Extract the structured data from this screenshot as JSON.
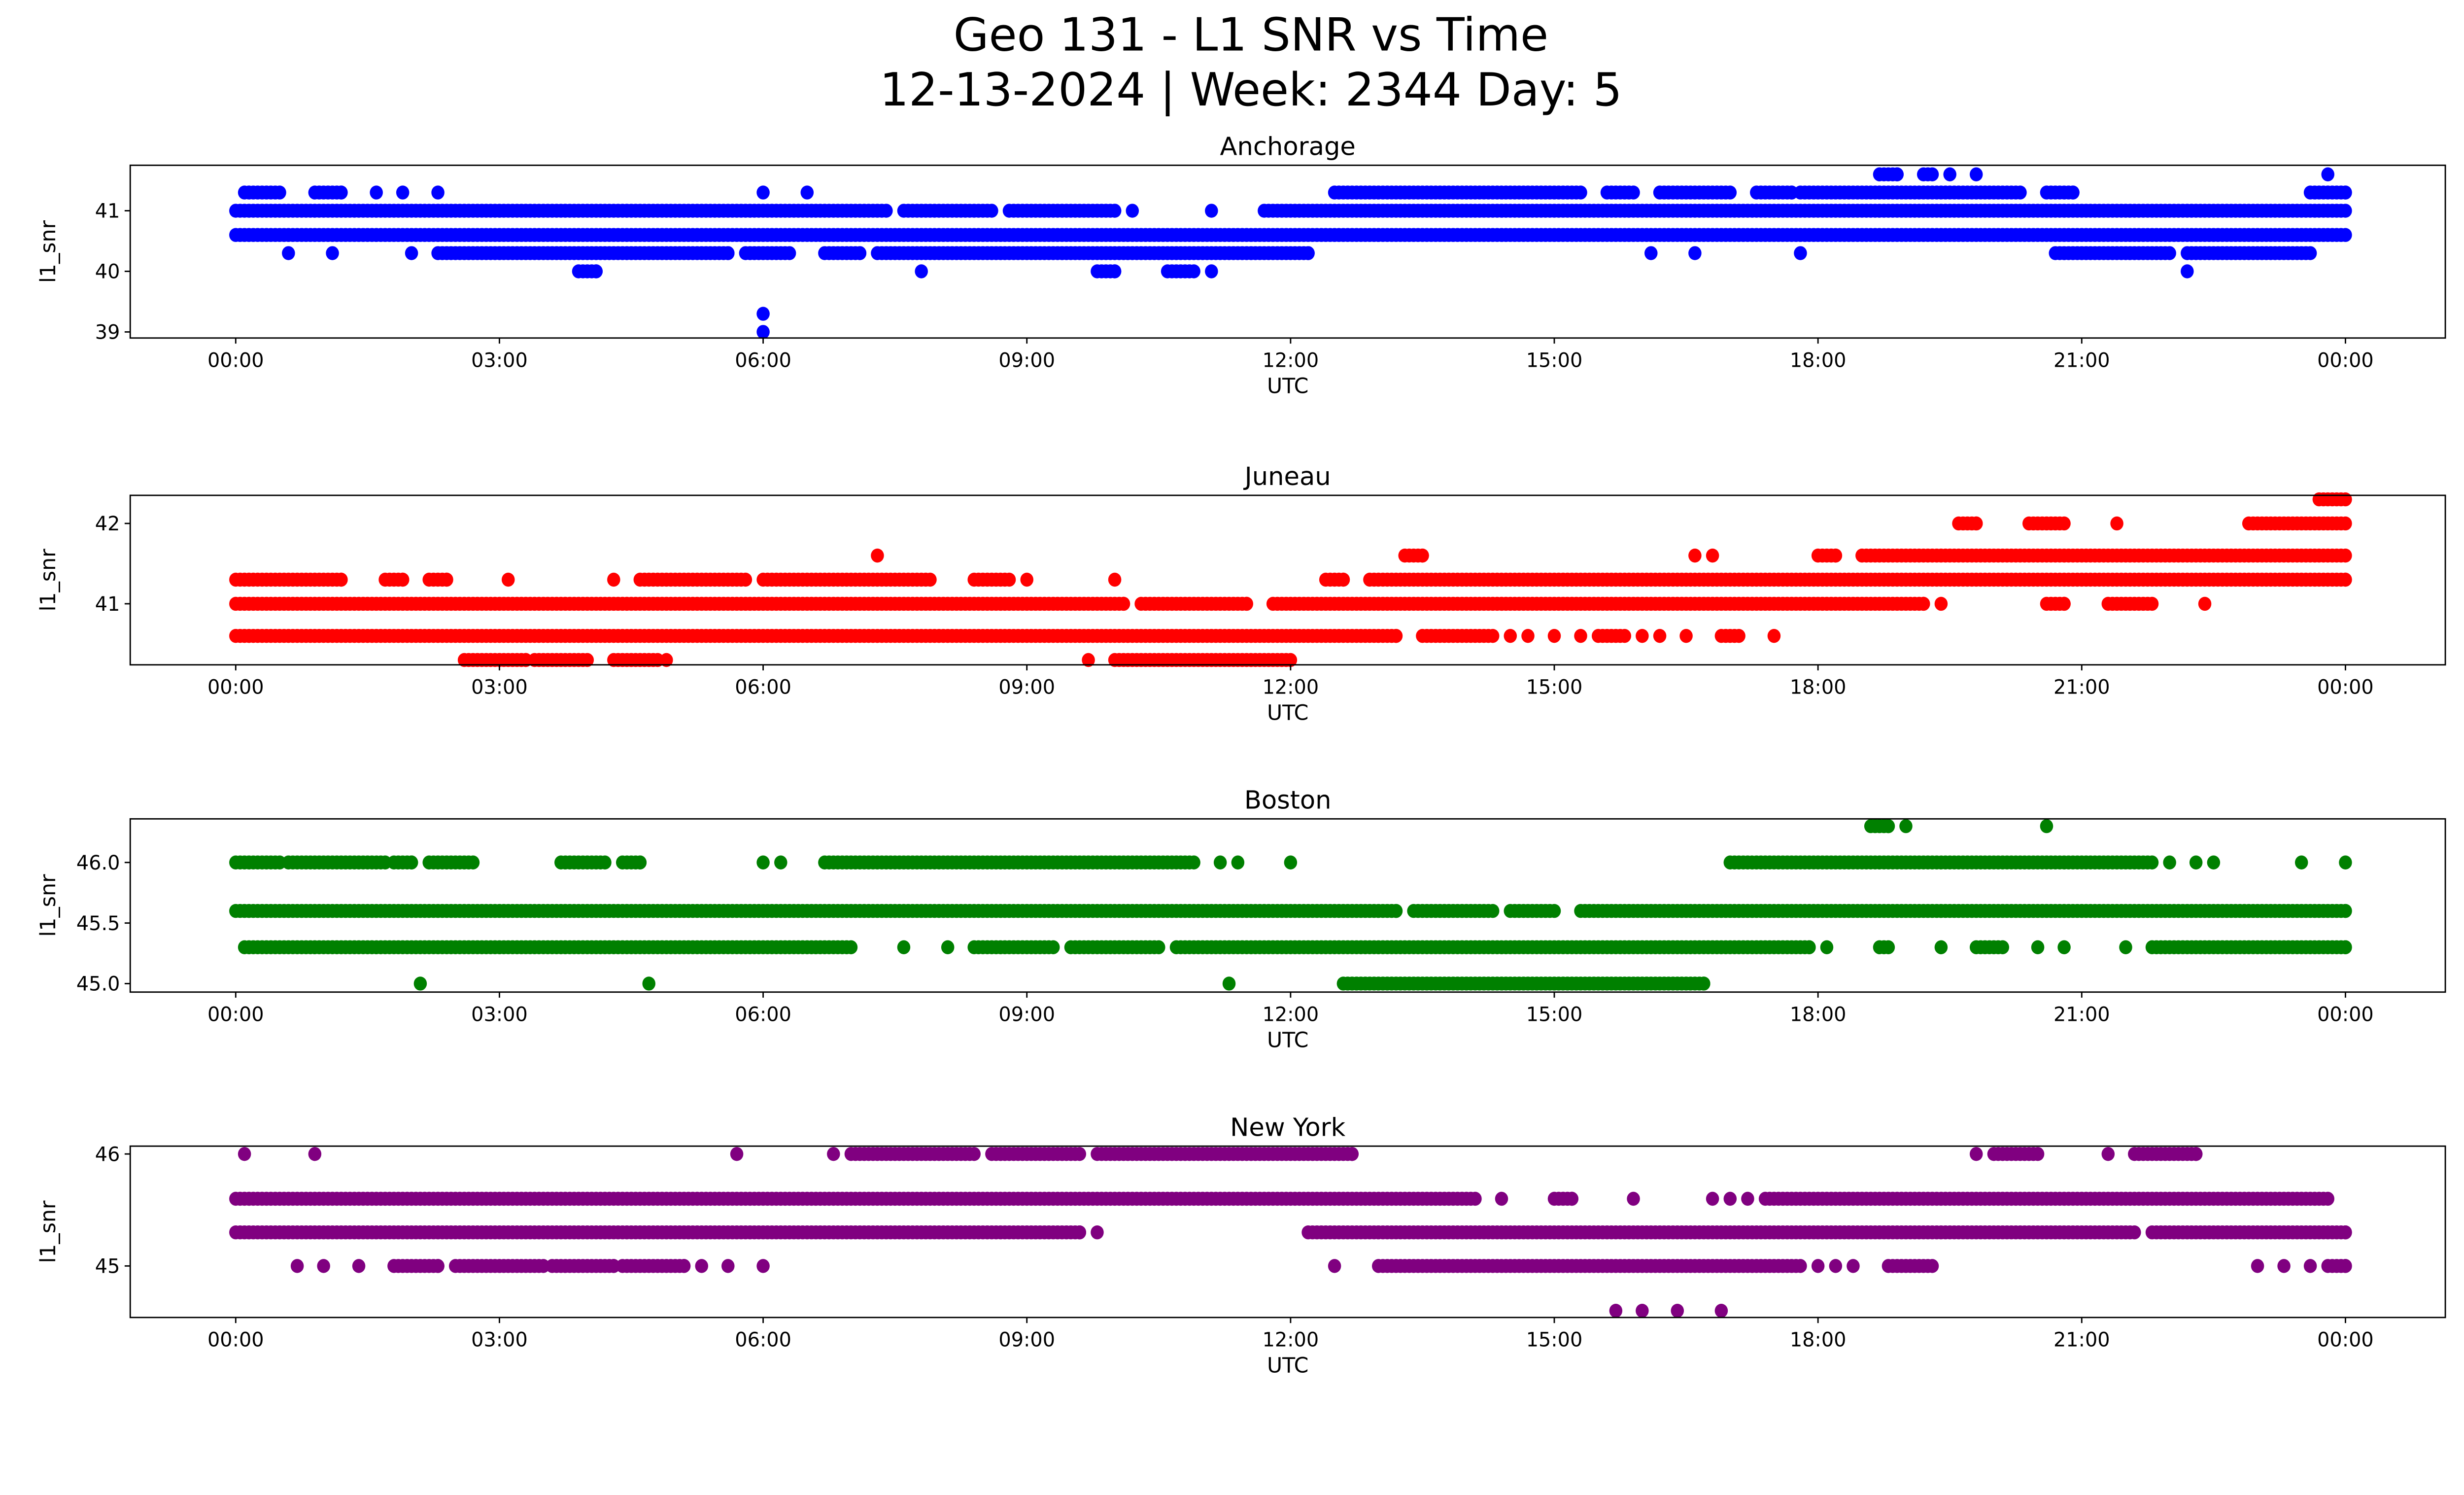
{
  "chart_data": {
    "type": "scatter",
    "title": "Geo 131 - L1 SNR vs Time",
    "subtitle": "12-13-2024 | Week: 2344 Day: 5",
    "x_ticks": [
      "00:00",
      "03:00",
      "06:00",
      "09:00",
      "12:00",
      "15:00",
      "18:00",
      "21:00",
      "00:00"
    ],
    "x_range_hours": [
      -1.55,
      25.1
    ],
    "xlabel": "UTC",
    "ylabel": "l1_snr",
    "grid": false,
    "panels": [
      {
        "title": "Anchorage",
        "color": "#0000ff",
        "ylim": [
          38.9,
          41.75
        ],
        "yticks": [
          "39",
          "40",
          "41"
        ],
        "ytick_values": [
          39,
          40,
          41
        ],
        "rows": [
          {
            "y": 41.6,
            "ranges": [
              [
                18.7,
                18.9
              ],
              [
                19.2,
                19.3
              ],
              [
                19.5,
                19.5
              ],
              [
                19.8,
                19.8
              ],
              [
                23.8,
                23.8
              ]
            ]
          },
          {
            "y": 41.3,
            "ranges": [
              [
                0.1,
                0.5
              ],
              [
                0.9,
                1.2
              ],
              [
                1.6,
                1.6
              ],
              [
                1.9,
                1.9
              ],
              [
                2.3,
                2.3
              ],
              [
                6.0,
                6.0
              ],
              [
                6.5,
                6.5
              ],
              [
                12.5,
                15.3
              ],
              [
                15.6,
                15.9
              ],
              [
                16.2,
                17.0
              ],
              [
                17.3,
                17.7
              ],
              [
                17.8,
                20.3
              ],
              [
                20.6,
                20.9
              ],
              [
                23.6,
                24.0
              ]
            ]
          },
          {
            "y": 41.0,
            "ranges": [
              [
                0,
                7.4
              ],
              [
                7.6,
                8.6
              ],
              [
                8.8,
                10.0
              ],
              [
                10.2,
                10.2
              ],
              [
                11.1,
                11.1
              ],
              [
                11.7,
                24.0
              ]
            ]
          },
          {
            "y": 40.6,
            "ranges": [
              [
                0,
                24.0
              ]
            ]
          },
          {
            "y": 40.3,
            "ranges": [
              [
                0.6,
                0.6
              ],
              [
                1.1,
                1.1
              ],
              [
                2.0,
                2.0
              ],
              [
                2.3,
                5.6
              ],
              [
                5.8,
                6.3
              ],
              [
                6.7,
                7.1
              ],
              [
                7.3,
                12.2
              ],
              [
                16.1,
                16.1
              ],
              [
                16.6,
                16.6
              ],
              [
                17.8,
                17.8
              ],
              [
                20.7,
                22.0
              ],
              [
                22.2,
                23.6
              ]
            ]
          },
          {
            "y": 40.0,
            "ranges": [
              [
                3.9,
                4.1
              ],
              [
                7.8,
                7.8
              ],
              [
                9.8,
                10.0
              ],
              [
                10.6,
                10.9
              ],
              [
                11.1,
                11.1
              ],
              [
                22.2,
                22.2
              ]
            ]
          },
          {
            "y": 39.3,
            "ranges": [
              [
                6.0,
                6.0
              ]
            ]
          },
          {
            "y": 39.0,
            "ranges": [
              [
                6.0,
                6.0
              ]
            ]
          }
        ]
      },
      {
        "title": "Juneau",
        "color": "#ff0000",
        "ylim": [
          40.24,
          42.35
        ],
        "yticks": [
          "41",
          "42"
        ],
        "ytick_values": [
          41,
          42
        ],
        "rows": [
          {
            "y": 42.3,
            "ranges": [
              [
                23.7,
                24.0
              ]
            ]
          },
          {
            "y": 42.0,
            "ranges": [
              [
                19.6,
                19.8
              ],
              [
                20.4,
                20.8
              ],
              [
                21.4,
                21.4
              ],
              [
                22.9,
                24.0
              ]
            ]
          },
          {
            "y": 41.6,
            "ranges": [
              [
                7.3,
                7.3
              ],
              [
                13.3,
                13.5
              ],
              [
                16.6,
                16.6
              ],
              [
                16.8,
                16.8
              ],
              [
                18.0,
                18.2
              ],
              [
                18.5,
                24.0
              ]
            ]
          },
          {
            "y": 41.3,
            "ranges": [
              [
                0,
                1.2
              ],
              [
                1.7,
                1.9
              ],
              [
                2.2,
                2.4
              ],
              [
                3.1,
                3.1
              ],
              [
                4.3,
                4.3
              ],
              [
                4.6,
                5.8
              ],
              [
                6.0,
                7.9
              ],
              [
                8.4,
                8.8
              ],
              [
                9.0,
                9.0
              ],
              [
                10.0,
                10.0
              ],
              [
                12.4,
                12.6
              ],
              [
                12.9,
                24.0
              ]
            ]
          },
          {
            "y": 41.0,
            "ranges": [
              [
                0,
                10.1
              ],
              [
                10.3,
                11.5
              ],
              [
                11.8,
                19.2
              ],
              [
                19.4,
                19.4
              ],
              [
                20.6,
                20.8
              ],
              [
                21.3,
                21.8
              ],
              [
                22.4,
                22.4
              ]
            ]
          },
          {
            "y": 40.6,
            "ranges": [
              [
                0,
                13.2
              ],
              [
                13.5,
                14.3
              ],
              [
                14.5,
                14.5
              ],
              [
                14.7,
                14.7
              ],
              [
                15.0,
                15.0
              ],
              [
                15.3,
                15.3
              ],
              [
                15.5,
                15.8
              ],
              [
                16.0,
                16.0
              ],
              [
                16.2,
                16.2
              ],
              [
                16.5,
                16.5
              ],
              [
                16.9,
                17.1
              ],
              [
                17.5,
                17.5
              ]
            ]
          },
          {
            "y": 40.3,
            "ranges": [
              [
                2.6,
                3.3
              ],
              [
                3.4,
                4.0
              ],
              [
                4.3,
                4.8
              ],
              [
                4.9,
                4.9
              ],
              [
                9.7,
                9.7
              ],
              [
                10.0,
                12.0
              ]
            ]
          }
        ]
      },
      {
        "title": "Boston",
        "color": "#008000",
        "ylim": [
          44.93,
          46.36
        ],
        "yticks": [
          "45.0",
          "45.5",
          "46.0"
        ],
        "ytick_values": [
          45.0,
          45.5,
          46.0
        ],
        "rows": [
          {
            "y": 46.3,
            "ranges": [
              [
                18.6,
                18.8
              ],
              [
                19.0,
                19.0
              ],
              [
                20.6,
                20.6
              ]
            ]
          },
          {
            "y": 46.0,
            "ranges": [
              [
                0,
                0.5
              ],
              [
                0.6,
                1.7
              ],
              [
                1.8,
                2.0
              ],
              [
                2.2,
                2.7
              ],
              [
                3.7,
                4.2
              ],
              [
                4.4,
                4.6
              ],
              [
                6.0,
                6.0
              ],
              [
                6.2,
                6.2
              ],
              [
                6.7,
                10.9
              ],
              [
                11.2,
                11.2
              ],
              [
                11.4,
                11.4
              ],
              [
                12.0,
                12.0
              ],
              [
                17.0,
                21.8
              ],
              [
                22.0,
                22.0
              ],
              [
                22.3,
                22.3
              ],
              [
                22.5,
                22.5
              ],
              [
                23.5,
                23.5
              ],
              [
                24.0,
                24.0
              ]
            ]
          },
          {
            "y": 45.6,
            "ranges": [
              [
                0,
                13.2
              ],
              [
                13.4,
                14.3
              ],
              [
                14.5,
                15.0
              ],
              [
                15.3,
                24.0
              ]
            ]
          },
          {
            "y": 45.3,
            "ranges": [
              [
                0.1,
                7.0
              ],
              [
                7.6,
                7.6
              ],
              [
                8.1,
                8.1
              ],
              [
                8.4,
                9.3
              ],
              [
                9.5,
                10.5
              ],
              [
                10.7,
                17.9
              ],
              [
                18.1,
                18.1
              ],
              [
                18.7,
                18.8
              ],
              [
                19.4,
                19.4
              ],
              [
                19.8,
                20.1
              ],
              [
                20.5,
                20.5
              ],
              [
                20.8,
                20.8
              ],
              [
                21.5,
                21.5
              ],
              [
                21.8,
                24.0
              ]
            ]
          },
          {
            "y": 45.0,
            "ranges": [
              [
                2.1,
                2.1
              ],
              [
                4.7,
                4.7
              ],
              [
                11.3,
                11.3
              ],
              [
                12.6,
                16.7
              ]
            ]
          }
        ]
      },
      {
        "title": "New York",
        "color": "#800080",
        "ylim": [
          44.54,
          46.07
        ],
        "yticks": [
          "45",
          "46"
        ],
        "ytick_values": [
          45,
          46
        ],
        "rows": [
          {
            "y": 46.0,
            "ranges": [
              [
                0.1,
                0.1
              ],
              [
                0.9,
                0.9
              ],
              [
                5.7,
                5.7
              ],
              [
                6.8,
                6.8
              ],
              [
                7.0,
                8.4
              ],
              [
                8.6,
                9.6
              ],
              [
                9.8,
                12.7
              ],
              [
                19.8,
                19.8
              ],
              [
                20.0,
                20.5
              ],
              [
                21.3,
                21.3
              ],
              [
                21.6,
                22.3
              ]
            ]
          },
          {
            "y": 45.6,
            "ranges": [
              [
                0,
                14.1
              ],
              [
                14.4,
                14.4
              ],
              [
                15.0,
                15.2
              ],
              [
                15.9,
                15.9
              ],
              [
                16.8,
                16.8
              ],
              [
                17.0,
                17.0
              ],
              [
                17.2,
                17.2
              ],
              [
                17.4,
                23.8
              ]
            ]
          },
          {
            "y": 45.3,
            "ranges": [
              [
                0,
                9.6
              ],
              [
                9.8,
                9.8
              ],
              [
                12.2,
                21.6
              ],
              [
                21.8,
                24.0
              ]
            ]
          },
          {
            "y": 45.0,
            "ranges": [
              [
                0.7,
                0.7
              ],
              [
                1.0,
                1.0
              ],
              [
                1.4,
                1.4
              ],
              [
                1.8,
                2.3
              ],
              [
                2.5,
                3.5
              ],
              [
                3.6,
                4.3
              ],
              [
                4.4,
                5.1
              ],
              [
                5.3,
                5.3
              ],
              [
                5.6,
                5.6
              ],
              [
                6.0,
                6.0
              ],
              [
                12.5,
                12.5
              ],
              [
                13.0,
                17.8
              ],
              [
                18.0,
                18.0
              ],
              [
                18.2,
                18.2
              ],
              [
                18.4,
                18.4
              ],
              [
                18.8,
                19.3
              ],
              [
                23.0,
                23.0
              ],
              [
                23.3,
                23.3
              ],
              [
                23.6,
                23.6
              ],
              [
                23.8,
                24.0
              ]
            ]
          },
          {
            "y": 44.6,
            "ranges": [
              [
                15.7,
                15.7
              ],
              [
                16.0,
                16.0
              ],
              [
                16.4,
                16.4
              ],
              [
                16.9,
                16.9
              ]
            ]
          }
        ]
      }
    ]
  }
}
